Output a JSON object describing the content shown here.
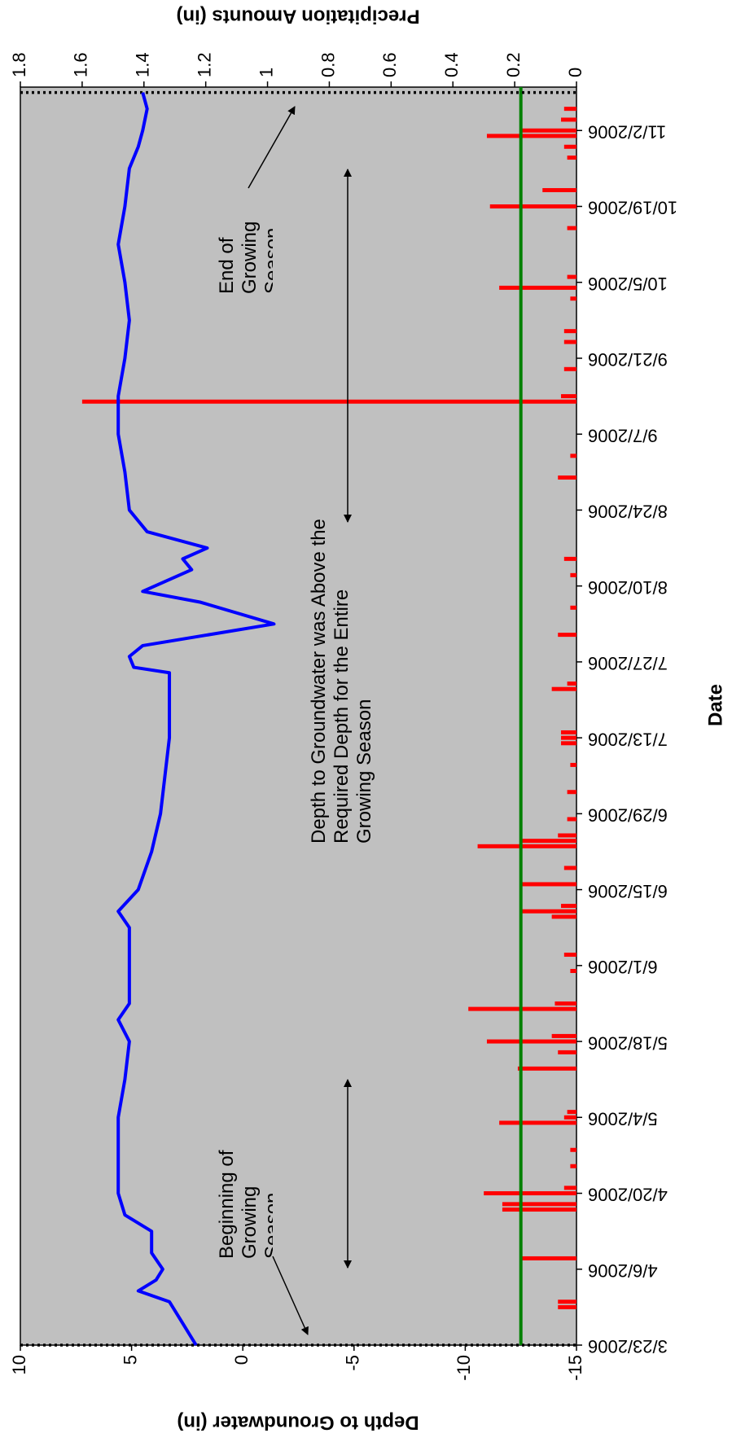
{
  "chart_data": {
    "type": "combo",
    "xlabel": "Date",
    "ylabel": "Depth to Groundwater (in)",
    "y2label": "Precipitation Amounts (in)",
    "xlim": [
      "3/23/2006",
      "11/10/2006"
    ],
    "xticks": [
      "3/23/2006",
      "4/6/2006",
      "4/20/2006",
      "5/4/2006",
      "5/18/2006",
      "6/1/2006",
      "6/15/2006",
      "6/29/2006",
      "7/13/2006",
      "7/27/2006",
      "8/10/2006",
      "8/24/2006",
      "9/7/2006",
      "9/21/2006",
      "10/5/2006",
      "10/19/2006",
      "11/2/2006"
    ],
    "ylim": [
      -15,
      10
    ],
    "yticks": [
      -15,
      -10,
      -5,
      0,
      5,
      10
    ],
    "y2lim": [
      0,
      1.8
    ],
    "y2ticks": [
      0,
      0.2,
      0.4,
      0.6,
      0.8,
      1,
      1.2,
      1.4,
      1.6,
      1.8
    ],
    "background": "#c0c0c0",
    "series": [
      {
        "type": "line",
        "color": "#0000ff",
        "x": [
          "3/23/2006",
          "3/27/2006",
          "3/31/2006",
          "4/2/2006",
          "4/4/2006",
          "4/6/2006",
          "4/9/2006",
          "4/13/2006",
          "4/16/2006",
          "4/20/2006",
          "4/27/2006",
          "5/4/2006",
          "5/11/2006",
          "5/18/2006",
          "5/22/2006",
          "5/25/2006",
          "6/1/2006",
          "6/8/2006",
          "6/11/2006",
          "6/15/2006",
          "6/22/2006",
          "6/29/2006",
          "7/6/2006",
          "7/13/2006",
          "7/20/2006",
          "7/25/2006",
          "7/26/2006",
          "7/28/2006",
          "7/30/2006",
          "8/3/2006",
          "8/7/2006",
          "8/9/2006",
          "8/13/2006",
          "8/15/2006",
          "8/17/2006",
          "8/20/2006",
          "8/24/2006",
          "8/31/2006",
          "9/7/2006",
          "9/14/2006",
          "9/21/2006",
          "9/28/2006",
          "10/5/2006",
          "10/12/2006",
          "10/19/2006",
          "10/26/2006",
          "10/30/2006",
          "11/2/2006",
          "11/6/2006",
          "11/9/2006"
        ],
        "values": [
          2.1,
          2.7,
          3.3,
          4.7,
          3.9,
          3.6,
          4.1,
          4.1,
          5.3,
          5.6,
          5.6,
          5.6,
          5.3,
          5.1,
          5.6,
          5.1,
          5.1,
          5.1,
          5.6,
          4.7,
          4.1,
          3.7,
          3.5,
          3.3,
          3.3,
          3.3,
          4.9,
          5.1,
          4.5,
          -1.4,
          1.9,
          4.5,
          2.3,
          2.7,
          1.6,
          4.3,
          5.1,
          5.3,
          5.6,
          5.6,
          5.3,
          5.1,
          5.3,
          5.6,
          5.3,
          5.1,
          4.7,
          4.5,
          4.3,
          4.5
        ]
      },
      {
        "type": "bar",
        "axis": "y2",
        "color": "#ff0000",
        "x": [
          "3/30/2006",
          "3/31/2006",
          "4/8/2006",
          "4/17/2006",
          "4/18/2006",
          "4/20/2006",
          "4/21/2006",
          "4/25/2006",
          "4/28/2006",
          "5/3/2006",
          "5/4/2006",
          "5/5/2006",
          "5/13/2006",
          "5/16/2006",
          "5/18/2006",
          "5/19/2006",
          "5/24/2006",
          "5/25/2006",
          "5/31/2006",
          "6/3/2006",
          "6/10/2006",
          "6/11/2006",
          "6/12/2006",
          "6/16/2006",
          "6/19/2006",
          "6/23/2006",
          "6/24/2006",
          "6/25/2006",
          "6/28/2006",
          "7/3/2006",
          "7/8/2006",
          "7/12/2006",
          "7/13/2006",
          "7/14/2006",
          "7/22/2006",
          "7/23/2006",
          "8/1/2006",
          "8/6/2006",
          "8/12/2006",
          "8/15/2006",
          "8/30/2006",
          "9/3/2006",
          "9/13/2006",
          "9/14/2006",
          "9/19/2006",
          "9/24/2006",
          "9/26/2006",
          "10/2/2006",
          "10/4/2006",
          "10/6/2006",
          "10/15/2006",
          "10/19/2006",
          "10/22/2006",
          "10/28/2006",
          "10/30/2006",
          "11/1/2006",
          "11/2/2006",
          "11/4/2006",
          "11/6/2006"
        ],
        "values": [
          0.06,
          0.06,
          0.18,
          0.24,
          0.24,
          0.3,
          0.04,
          0.02,
          0.02,
          0.25,
          0.04,
          0.03,
          0.19,
          0.06,
          0.29,
          0.08,
          0.35,
          0.07,
          0.02,
          0.04,
          0.08,
          0.18,
          0.05,
          0.18,
          0.04,
          0.32,
          0.18,
          0.06,
          0.03,
          0.03,
          0.02,
          0.05,
          0.05,
          0.05,
          0.08,
          0.03,
          0.06,
          0.02,
          0.02,
          0.04,
          0.06,
          0.02,
          1.6,
          0.05,
          0.04,
          0.04,
          0.04,
          0.02,
          0.25,
          0.03,
          0.03,
          0.28,
          0.11,
          0.03,
          0.04,
          0.29,
          0.18,
          0.05,
          0.04
        ]
      }
    ],
    "hlines": [
      {
        "value": -12.5,
        "color": "#008000"
      }
    ],
    "vlines": [
      {
        "x": "3/23/2006"
      },
      {
        "x": "11/9/2006"
      }
    ],
    "annotations": [
      "Beginning of Growing Season",
      "End of Growing Season",
      "Depth to Groundwater was Above the Required Depth for the Entire Growing Season"
    ]
  }
}
